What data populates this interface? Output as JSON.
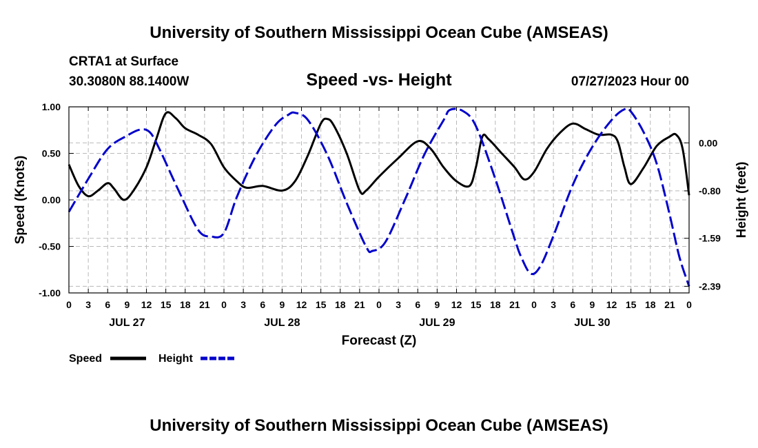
{
  "page": {
    "title_top": "University of Southern Mississippi Ocean Cube (AMSEAS)",
    "title_bottom": "University of Southern Mississippi Ocean Cube (AMSEAS)",
    "station": "CRTA1 at Surface",
    "position": "30.3080N  88.1400W",
    "plot_title": "Speed -vs- Height",
    "date": "07/27/2023 Hour 00"
  },
  "chart_data": {
    "type": "line",
    "title": "Speed -vs- Height",
    "xlabel": "Forecast (Z)",
    "ylabel_left": "Speed (Knots)",
    "ylabel_right": "Height (feet)",
    "x_range_hours": [
      0,
      96
    ],
    "left_ylim": [
      -1.0,
      1.0
    ],
    "left_ticks": [
      "1.00",
      "0.50",
      "0.00",
      "-0.50",
      "-1.00"
    ],
    "left_tick_values": [
      1.0,
      0.5,
      0.0,
      -0.5,
      -1.0
    ],
    "right_ylim": [
      -2.5,
      0.6
    ],
    "right_ticks": [
      "0.00",
      "-0.80",
      "-1.59",
      "-2.39"
    ],
    "right_tick_values": [
      0.0,
      -0.8,
      -1.59,
      -2.39
    ],
    "x_tick_labels": [
      "0",
      "3",
      "6",
      "9",
      "12",
      "15",
      "18",
      "21",
      "0",
      "3",
      "6",
      "9",
      "12",
      "15",
      "18",
      "21",
      "0",
      "3",
      "6",
      "9",
      "12",
      "15",
      "18",
      "21",
      "0",
      "3",
      "6",
      "9",
      "12",
      "15",
      "18",
      "21",
      "0"
    ],
    "date_labels": [
      {
        "hour": 9,
        "label": "JUL 27"
      },
      {
        "hour": 33,
        "label": "JUL 28"
      },
      {
        "hour": 57,
        "label": "JUL 29"
      },
      {
        "hour": 81,
        "label": "JUL 30"
      }
    ],
    "grid": true,
    "legend": {
      "speed_label": "Speed",
      "height_label": "Height",
      "placement": "bottom-left"
    },
    "series": [
      {
        "name": "Speed",
        "axis": "left",
        "color": "#000000",
        "points": [
          [
            0,
            0.38
          ],
          [
            1.5,
            0.15
          ],
          [
            3,
            0.04
          ],
          [
            4.5,
            0.1
          ],
          [
            6,
            0.18
          ],
          [
            7,
            0.12
          ],
          [
            8.5,
            0.0
          ],
          [
            10,
            0.1
          ],
          [
            12,
            0.35
          ],
          [
            13.5,
            0.65
          ],
          [
            15,
            0.93
          ],
          [
            16.5,
            0.88
          ],
          [
            18,
            0.77
          ],
          [
            20,
            0.7
          ],
          [
            22,
            0.6
          ],
          [
            24,
            0.35
          ],
          [
            26,
            0.2
          ],
          [
            27.5,
            0.13
          ],
          [
            30,
            0.15
          ],
          [
            33,
            0.1
          ],
          [
            35,
            0.2
          ],
          [
            37,
            0.48
          ],
          [
            39,
            0.82
          ],
          [
            40,
            0.87
          ],
          [
            41,
            0.8
          ],
          [
            43,
            0.5
          ],
          [
            45,
            0.1
          ],
          [
            46,
            0.1
          ],
          [
            48,
            0.25
          ],
          [
            51,
            0.45
          ],
          [
            54,
            0.63
          ],
          [
            56,
            0.55
          ],
          [
            58,
            0.35
          ],
          [
            60,
            0.2
          ],
          [
            62,
            0.15
          ],
          [
            63,
            0.35
          ],
          [
            64,
            0.68
          ],
          [
            65,
            0.65
          ],
          [
            67,
            0.5
          ],
          [
            69,
            0.35
          ],
          [
            70.5,
            0.22
          ],
          [
            72,
            0.3
          ],
          [
            74,
            0.55
          ],
          [
            76,
            0.72
          ],
          [
            78,
            0.82
          ],
          [
            80,
            0.76
          ],
          [
            82,
            0.7
          ],
          [
            84,
            0.7
          ],
          [
            85,
            0.62
          ],
          [
            86,
            0.35
          ],
          [
            87,
            0.17
          ],
          [
            89,
            0.35
          ],
          [
            91,
            0.58
          ],
          [
            93,
            0.68
          ],
          [
            94,
            0.7
          ],
          [
            95,
            0.55
          ],
          [
            96,
            0.05
          ]
        ]
      },
      {
        "name": "Height",
        "axis": "right",
        "color": "#0000cc",
        "points": [
          [
            0,
            -1.15
          ],
          [
            3,
            -0.6
          ],
          [
            6,
            -0.1
          ],
          [
            9,
            0.12
          ],
          [
            11,
            0.22
          ],
          [
            12.5,
            0.18
          ],
          [
            14,
            -0.1
          ],
          [
            17,
            -0.8
          ],
          [
            20,
            -1.45
          ],
          [
            22,
            -1.56
          ],
          [
            24,
            -1.5
          ],
          [
            26,
            -0.9
          ],
          [
            29,
            -0.2
          ],
          [
            32,
            0.3
          ],
          [
            34,
            0.47
          ],
          [
            35,
            0.5
          ],
          [
            37,
            0.38
          ],
          [
            40,
            -0.2
          ],
          [
            43,
            -1.0
          ],
          [
            46,
            -1.73
          ],
          [
            47,
            -1.8
          ],
          [
            49,
            -1.65
          ],
          [
            52,
            -0.95
          ],
          [
            55,
            -0.2
          ],
          [
            58,
            0.38
          ],
          [
            59,
            0.55
          ],
          [
            61,
            0.53
          ],
          [
            63,
            0.28
          ],
          [
            66,
            -0.6
          ],
          [
            69,
            -1.6
          ],
          [
            70,
            -1.9
          ],
          [
            71.5,
            -2.18
          ],
          [
            73,
            -2.05
          ],
          [
            75,
            -1.55
          ],
          [
            78,
            -0.7
          ],
          [
            81,
            -0.07
          ],
          [
            84,
            0.38
          ],
          [
            86,
            0.56
          ],
          [
            87,
            0.52
          ],
          [
            89,
            0.17
          ],
          [
            91,
            -0.35
          ],
          [
            93,
            -1.2
          ],
          [
            94.5,
            -1.9
          ],
          [
            96,
            -2.39
          ]
        ]
      }
    ]
  }
}
